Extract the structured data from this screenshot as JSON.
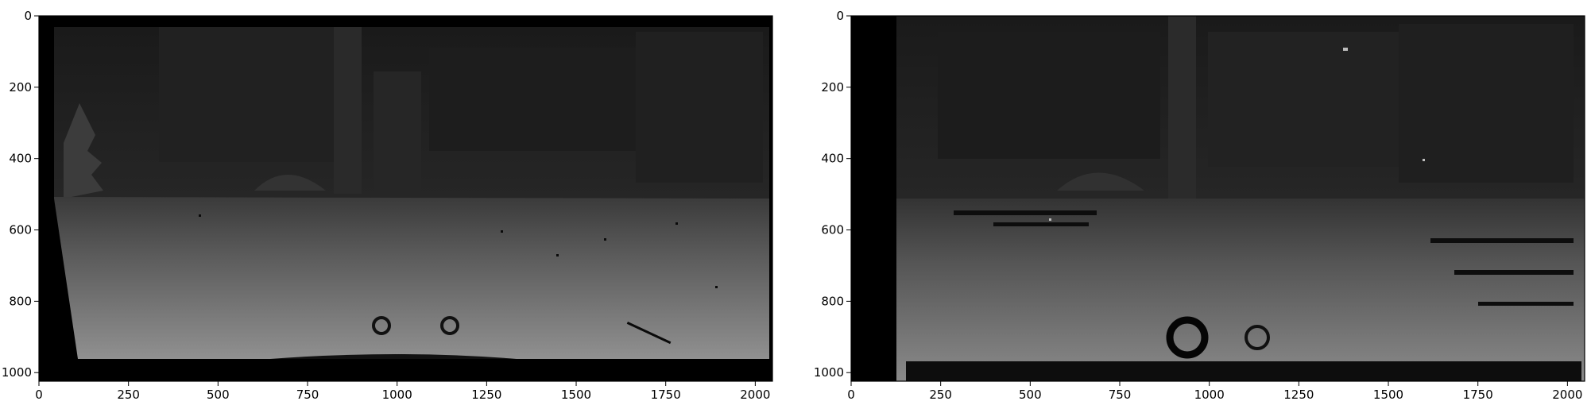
{
  "panels": [
    {
      "id": "left",
      "x_ticks": [
        "0",
        "250",
        "500",
        "750",
        "1000",
        "1250",
        "1500",
        "1750",
        "2000"
      ],
      "y_ticks": [
        "0",
        "200",
        "400",
        "600",
        "800",
        "1000"
      ],
      "x_range": [
        0,
        2048
      ],
      "y_range": [
        0,
        1024
      ],
      "content": "depth-map-dense"
    },
    {
      "id": "right",
      "x_ticks": [
        "0",
        "250",
        "500",
        "750",
        "1000",
        "1250",
        "1500",
        "1750",
        "2000"
      ],
      "y_ticks": [
        "0",
        "200",
        "400",
        "600",
        "800",
        "1000"
      ],
      "x_range": [
        0,
        2048
      ],
      "y_range": [
        0,
        1024
      ],
      "content": "depth-map-noisy"
    }
  ],
  "colors": {
    "frame": "#000000",
    "background": "#ffffff",
    "sky_dark": "#1b1b1b",
    "road_light": "#8f8f8f"
  }
}
